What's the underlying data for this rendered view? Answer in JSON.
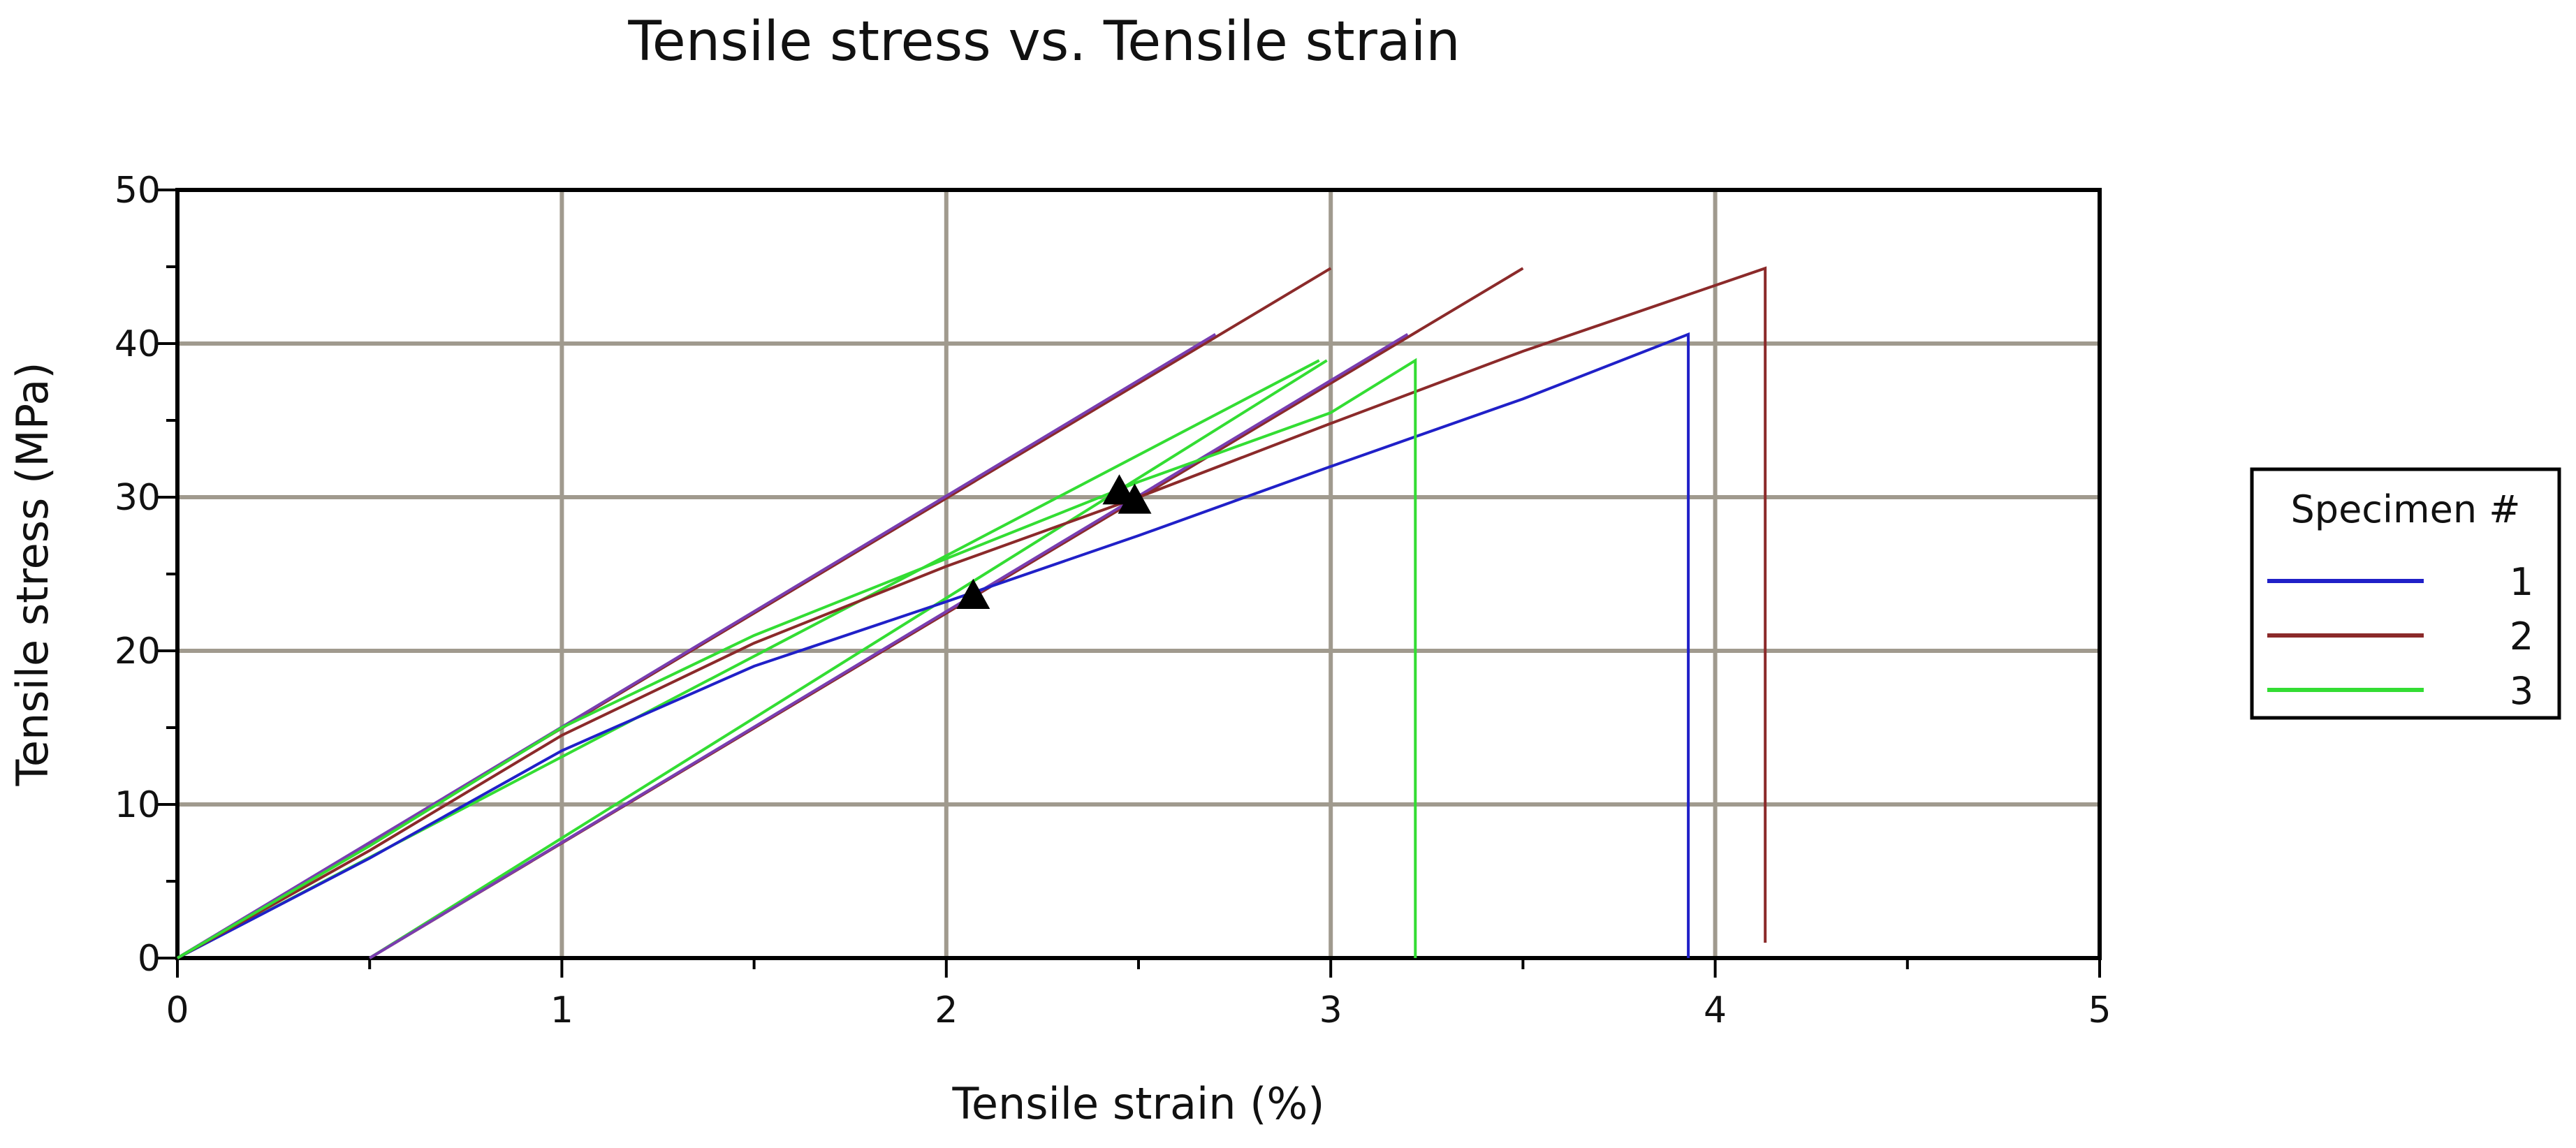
{
  "chart_data": {
    "type": "line",
    "title": "Tensile stress vs. Tensile strain",
    "xlabel": "Tensile strain (%)",
    "ylabel": "Tensile stress (MPa)",
    "xlim": [
      0,
      5
    ],
    "ylim": [
      0,
      50
    ],
    "x_ticks": [
      "0",
      "1",
      "2",
      "3",
      "4",
      "5"
    ],
    "y_ticks": [
      "0",
      "10",
      "20",
      "30",
      "40",
      "50"
    ],
    "grid": true,
    "legend": {
      "title": "Specimen #",
      "placement": "right",
      "entries": [
        "1",
        "2",
        "3"
      ]
    },
    "series": [
      {
        "name": "1",
        "color": "#2020c8",
        "points": [
          [
            0,
            0
          ],
          [
            0.5,
            6.5
          ],
          [
            1.0,
            13.5
          ],
          [
            1.5,
            19.0
          ],
          [
            2.0,
            23.2
          ],
          [
            2.5,
            27.5
          ],
          [
            3.0,
            32.0
          ],
          [
            3.5,
            36.4
          ],
          [
            3.93,
            40.6
          ],
          [
            3.93,
            0
          ]
        ],
        "marker": [
          2.07,
          23.6
        ]
      },
      {
        "name": "2",
        "color": "#8b2a2a",
        "points": [
          [
            0,
            0
          ],
          [
            0.5,
            7.0
          ],
          [
            1.0,
            14.5
          ],
          [
            1.5,
            20.5
          ],
          [
            2.0,
            25.5
          ],
          [
            2.5,
            30.0
          ],
          [
            3.0,
            34.8
          ],
          [
            3.5,
            39.5
          ],
          [
            4.13,
            44.9
          ],
          [
            4.13,
            1.0
          ]
        ],
        "marker": [
          2.49,
          29.8
        ]
      },
      {
        "name": "3",
        "color": "#33dd33",
        "points": [
          [
            0,
            0
          ],
          [
            0.5,
            7.3
          ],
          [
            1.0,
            15.0
          ],
          [
            1.5,
            21.0
          ],
          [
            2.0,
            26.0
          ],
          [
            2.5,
            31.0
          ],
          [
            3.0,
            35.5
          ],
          [
            3.22,
            38.9
          ],
          [
            3.22,
            0
          ]
        ],
        "marker": [
          2.45,
          30.4
        ]
      }
    ],
    "offset_lines": [
      {
        "color": "#2020c8",
        "x": [
          0,
          2.7
        ],
        "y": [
          0,
          40.6
        ]
      },
      {
        "color": "#2020c8",
        "x": [
          0.5,
          3.2
        ],
        "y": [
          0,
          40.6
        ]
      },
      {
        "color": "#8b2a2a",
        "x": [
          0,
          3.0
        ],
        "y": [
          0,
          44.9
        ]
      },
      {
        "color": "#8b2a2a",
        "x": [
          0.5,
          3.5
        ],
        "y": [
          0,
          44.9
        ]
      },
      {
        "color": "#33dd33",
        "x": [
          0,
          2.97
        ],
        "y": [
          0,
          38.9
        ]
      },
      {
        "color": "#33dd33",
        "x": [
          0.5,
          2.99
        ],
        "y": [
          0,
          38.9
        ]
      },
      {
        "color": "#7a3db0",
        "x": [
          0,
          2.7
        ],
        "y": [
          0,
          40.6
        ]
      },
      {
        "color": "#7a3db0",
        "x": [
          0.5,
          3.2
        ],
        "y": [
          0,
          40.6
        ]
      }
    ]
  }
}
